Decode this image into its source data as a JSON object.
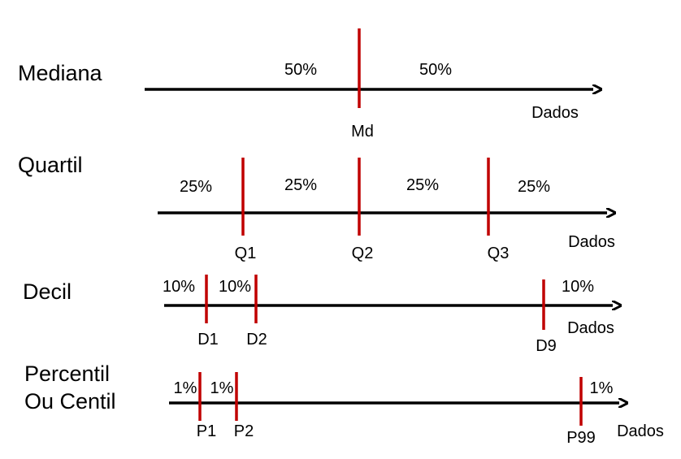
{
  "colors": {
    "axis": "#000000",
    "marker": "#c00000",
    "text": "#000000",
    "background": "#ffffff"
  },
  "axis_label": "Dados",
  "rows": [
    {
      "id": "mediana",
      "title_lines": [
        "Mediana"
      ],
      "percents": [
        "50%",
        "50%"
      ],
      "markers": [
        "Md"
      ]
    },
    {
      "id": "quartil",
      "title_lines": [
        "Quartil"
      ],
      "percents": [
        "25%",
        "25%",
        "25%",
        "25%"
      ],
      "markers": [
        "Q1",
        "Q2",
        "Q3"
      ]
    },
    {
      "id": "decil",
      "title_lines": [
        "Decil"
      ],
      "percents": [
        "10%",
        "10%",
        "10%"
      ],
      "markers": [
        "D1",
        "D2",
        "D9"
      ]
    },
    {
      "id": "percentil",
      "title_lines": [
        "Percentil",
        "Ou Centil"
      ],
      "percents": [
        "1%",
        "1%",
        "1%"
      ],
      "markers": [
        "P1",
        "P2",
        "P99"
      ]
    }
  ]
}
